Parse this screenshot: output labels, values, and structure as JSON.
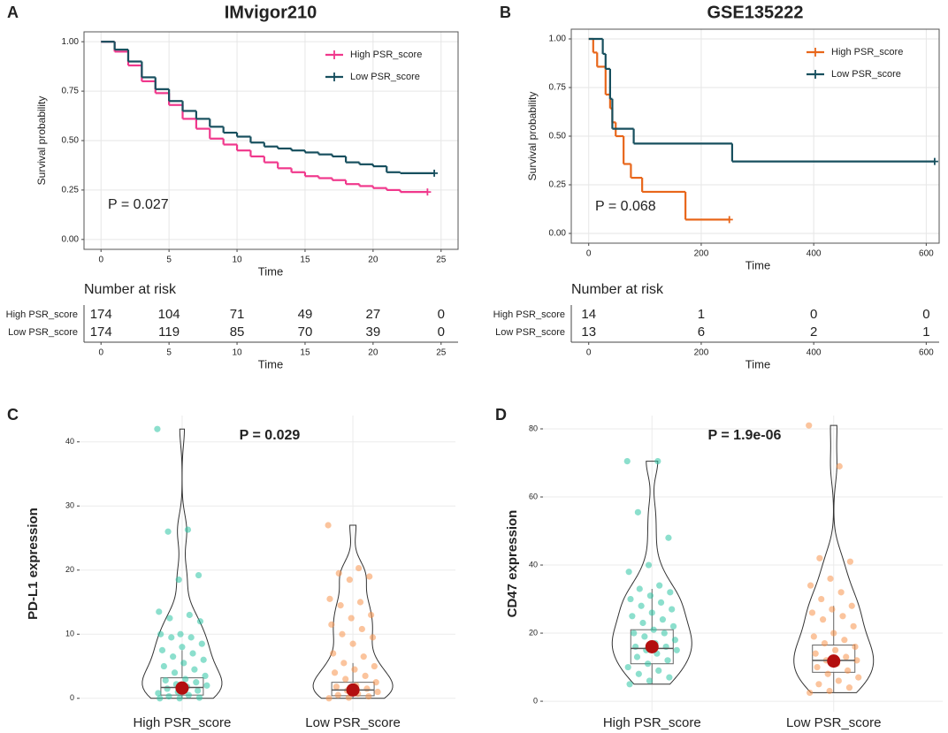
{
  "chart_data": [
    {
      "type": "survival",
      "panel": "A",
      "title": "IMvigor210",
      "xlabel": "Time",
      "ylabel": "Survival probability",
      "xlim": [
        -1.25,
        26.25
      ],
      "xticks": [
        0,
        5,
        10,
        15,
        20,
        25
      ],
      "ylim": [
        -0.05,
        1.05
      ],
      "yticks": [
        {
          "value": 0,
          "label": "0.00"
        },
        {
          "value": 0.25,
          "label": "0.25"
        },
        {
          "value": 0.5,
          "label": "0.50"
        },
        {
          "value": 0.75,
          "label": "0.75"
        },
        {
          "value": 1,
          "label": "1.00"
        }
      ],
      "grid": true,
      "legend": "top-right",
      "annotation": "P = 0.027",
      "series": [
        {
          "name": "High PSR_score",
          "color": "#f0388c",
          "x": [
            0,
            1,
            2,
            3,
            4,
            5,
            6,
            7,
            8,
            9,
            10,
            11,
            12,
            13,
            14,
            15,
            16,
            17,
            18,
            19,
            20,
            21,
            22,
            24
          ],
          "values": [
            1,
            0.95,
            0.88,
            0.8,
            0.74,
            0.68,
            0.61,
            0.56,
            0.51,
            0.48,
            0.45,
            0.42,
            0.39,
            0.36,
            0.34,
            0.32,
            0.31,
            0.3,
            0.28,
            0.27,
            0.26,
            0.25,
            0.24,
            0.24
          ]
        },
        {
          "name": "Low PSR_score",
          "color": "#174f5e",
          "x": [
            0,
            1,
            2,
            3,
            4,
            5,
            6,
            7,
            8,
            9,
            10,
            11,
            12,
            13,
            14,
            15,
            16,
            17,
            18,
            19,
            20,
            21,
            22,
            24.5
          ],
          "values": [
            1,
            0.96,
            0.9,
            0.82,
            0.76,
            0.7,
            0.65,
            0.61,
            0.57,
            0.54,
            0.52,
            0.49,
            0.47,
            0.46,
            0.45,
            0.44,
            0.43,
            0.42,
            0.39,
            0.38,
            0.37,
            0.34,
            0.335,
            0.335
          ]
        }
      ],
      "risk_title": "Number at risk",
      "risk_xlabel": "Time",
      "at_risk": [
        [
          174,
          104,
          71,
          49,
          27,
          0
        ],
        [
          174,
          119,
          85,
          70,
          39,
          0
        ]
      ]
    },
    {
      "type": "survival",
      "panel": "B",
      "title": "GSE135222",
      "xlabel": "Time",
      "ylabel": "Survival probability",
      "xlim": [
        -31,
        623
      ],
      "xticks": [
        0,
        200,
        400,
        600
      ],
      "ylim": [
        -0.05,
        1.05
      ],
      "yticks": [
        {
          "value": 0,
          "label": "0.00"
        },
        {
          "value": 0.25,
          "label": "0.25"
        },
        {
          "value": 0.5,
          "label": "0.50"
        },
        {
          "value": 0.75,
          "label": "0.75"
        },
        {
          "value": 1,
          "label": "1.00"
        }
      ],
      "grid": true,
      "legend": "top-right",
      "annotation": "P = 0.068",
      "series": [
        {
          "name": "High PSR_score",
          "color": "#e8661a",
          "x": [
            0,
            8,
            15,
            30,
            38,
            42,
            48,
            62,
            75,
            95,
            172,
            250
          ],
          "values": [
            1,
            0.93,
            0.857,
            0.714,
            0.643,
            0.571,
            0.5,
            0.357,
            0.286,
            0.214,
            0.071,
            0.071
          ]
        },
        {
          "name": "Low PSR_score",
          "color": "#174f5e",
          "x": [
            0,
            25,
            30,
            38,
            42,
            80,
            255,
            615
          ],
          "values": [
            1,
            0.923,
            0.846,
            0.692,
            0.538,
            0.462,
            0.37,
            0.37
          ]
        }
      ],
      "risk_title": "Number at risk",
      "risk_xlabel": "Time",
      "at_risk": [
        [
          14,
          1,
          0,
          0
        ],
        [
          13,
          6,
          2,
          1
        ]
      ]
    },
    {
      "type": "violin",
      "panel": "C",
      "title": "P = 0.029",
      "ylabel": "PD-L1 expression",
      "categories": [
        "High PSR_score",
        "Low PSR_score"
      ],
      "colors": [
        "#2ec4a4",
        "#f7944d"
      ],
      "ylim": [
        -2.1,
        44.1
      ],
      "yticks": [
        0,
        10,
        20,
        30,
        40
      ],
      "grid": true,
      "boxes": [
        {
          "q1": 0.5,
          "median": 1.7,
          "q3": 3.2,
          "whisker_low": 0,
          "whisker_high": 7.5,
          "mean": 1.6
        },
        {
          "q1": 0.4,
          "median": 1.3,
          "q3": 2.5,
          "whisker_low": 0,
          "whisker_high": 5.5,
          "mean": 1.3
        }
      ],
      "points": [
        [
          42,
          26.3,
          26,
          19.2,
          18.5,
          13.5,
          13,
          12.5,
          12,
          10,
          10,
          9.5,
          9.5,
          8.5,
          8,
          7.5,
          7,
          6.5,
          6,
          5.5,
          5,
          4.5,
          4,
          3.5,
          3,
          2.8,
          2.5,
          2.2,
          2,
          1.8,
          1.5,
          1.2,
          1,
          0.8,
          0.5,
          0.3,
          0.1,
          0,
          0
        ],
        [
          27,
          20.3,
          19.5,
          19,
          18.5,
          15.5,
          15,
          14.5,
          13,
          12.5,
          11.5,
          10.8,
          10,
          9.5,
          8.5,
          7,
          6.5,
          5.5,
          5,
          4.5,
          4,
          3.5,
          3,
          2.5,
          2,
          1.8,
          1.5,
          1.2,
          1,
          0.7,
          0.5,
          0.3,
          0.1,
          0
        ]
      ]
    },
    {
      "type": "violin",
      "panel": "D",
      "title": "P = 1.9e-06",
      "ylabel": "CD47 expression",
      "categories": [
        "High PSR_score",
        "Low PSR_score"
      ],
      "colors": [
        "#2ec4a4",
        "#f7944d"
      ],
      "ylim": [
        -3.1,
        83.9
      ],
      "yticks": [
        0,
        20,
        40,
        60,
        80
      ],
      "grid": true,
      "boxes": [
        {
          "q1": 11,
          "median": 15.5,
          "q3": 21,
          "whisker_low": 5,
          "whisker_high": 33,
          "mean": 16
        },
        {
          "q1": 8.5,
          "median": 12,
          "q3": 16.5,
          "whisker_low": 2.5,
          "whisker_high": 28,
          "mean": 11.8
        }
      ],
      "points": [
        [
          70.5,
          70.5,
          55.5,
          48,
          40,
          38,
          34,
          33,
          32,
          31,
          30,
          29,
          28,
          27,
          26,
          25,
          24,
          23,
          22,
          21,
          20,
          20,
          19,
          18,
          17,
          16,
          16,
          15,
          15,
          14,
          13,
          12,
          11,
          10,
          9,
          8,
          7,
          6,
          5
        ],
        [
          81,
          69,
          42,
          41,
          36,
          34,
          32,
          30,
          28,
          27,
          26,
          25,
          24,
          22,
          20,
          19,
          18,
          17,
          16,
          15,
          14,
          13,
          12,
          12,
          11,
          10,
          9,
          8,
          7,
          6,
          5,
          4,
          3,
          2.5
        ]
      ]
    }
  ]
}
